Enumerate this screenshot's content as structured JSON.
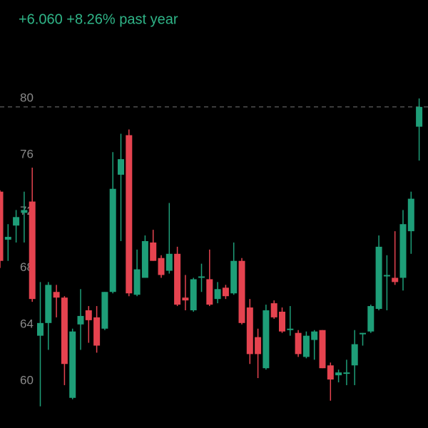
{
  "chart_data": {
    "type": "candlestick",
    "title": "+6.060 +8.26% past year",
    "open": [
      73.4,
      70.0,
      71.0,
      71.9,
      72.7,
      63.2,
      64.1,
      66.3,
      65.9,
      58.8,
      64.0,
      65.0,
      64.5,
      63.7,
      66.3,
      74.6,
      77.4,
      66.1,
      67.3,
      69.8,
      68.7,
      67.8,
      69.0,
      65.9,
      65.0,
      67.3,
      67.2,
      65.8,
      66.6,
      66.2,
      68.5,
      65.2,
      63.1,
      60.9,
      65.5,
      64.9,
      63.6,
      63.4,
      61.7,
      62.9,
      63.6,
      61.1,
      60.4,
      60.5,
      61.1,
      63.3,
      63.5,
      65.1,
      67.4,
      67.3,
      67.3,
      70.6,
      78.0
    ],
    "high": [
      73.5,
      71.1,
      72.1,
      73.4,
      75.1,
      67.0,
      67.0,
      66.8,
      66.0,
      63.7,
      66.5,
      65.3,
      65.3,
      66.3,
      76.2,
      77.5,
      77.8,
      69.3,
      70.3,
      70.7,
      68.9,
      72.6,
      69.5,
      67.5,
      67.3,
      68.3,
      69.3,
      67.0,
      66.8,
      69.8,
      68.7,
      65.8,
      63.7,
      65.4,
      65.7,
      65.2,
      65.3,
      63.6,
      63.5,
      63.6,
      63.6,
      61.3,
      60.8,
      61.5,
      63.6,
      63.4,
      65.4,
      70.3,
      68.9,
      70.6,
      72.1,
      73.4,
      80.0
    ],
    "low": [
      68.0,
      68.5,
      69.8,
      69.8,
      65.6,
      58.2,
      62.2,
      64.5,
      59.7,
      58.7,
      62.2,
      62.7,
      62.0,
      63.6,
      66.2,
      69.9,
      66.0,
      66.0,
      67.3,
      68.5,
      67.3,
      67.6,
      65.3,
      65.0,
      64.9,
      66.3,
      65.3,
      65.5,
      65.8,
      66.1,
      64.0,
      61.2,
      60.2,
      60.8,
      64.4,
      63.4,
      63.2,
      61.7,
      61.6,
      61.5,
      60.9,
      58.6,
      59.9,
      59.7,
      59.7,
      62.5,
      63.4,
      65.0,
      65.0,
      66.8,
      66.4,
      69.0,
      75.6
    ],
    "close": [
      68.5,
      70.2,
      71.6,
      72.1,
      65.8,
      64.1,
      66.8,
      65.9,
      61.2,
      63.5,
      64.6,
      64.3,
      62.5,
      66.3,
      73.6,
      75.7,
      66.2,
      67.9,
      69.9,
      68.5,
      67.5,
      69.0,
      65.4,
      65.7,
      67.2,
      67.4,
      65.4,
      66.5,
      66.0,
      68.5,
      64.1,
      61.9,
      61.9,
      65.0,
      64.5,
      63.5,
      63.7,
      61.9,
      63.2,
      63.5,
      60.9,
      60.1,
      60.6,
      60.6,
      62.6,
      63.4,
      65.3,
      69.5,
      67.5,
      67.0,
      71.1,
      72.9,
      79.4
    ],
    "up_color": "#1e9e78",
    "down_color": "#e5434f",
    "ylim": [
      58,
      82
    ],
    "yticks": [
      60,
      64,
      68,
      72,
      76,
      80
    ]
  }
}
